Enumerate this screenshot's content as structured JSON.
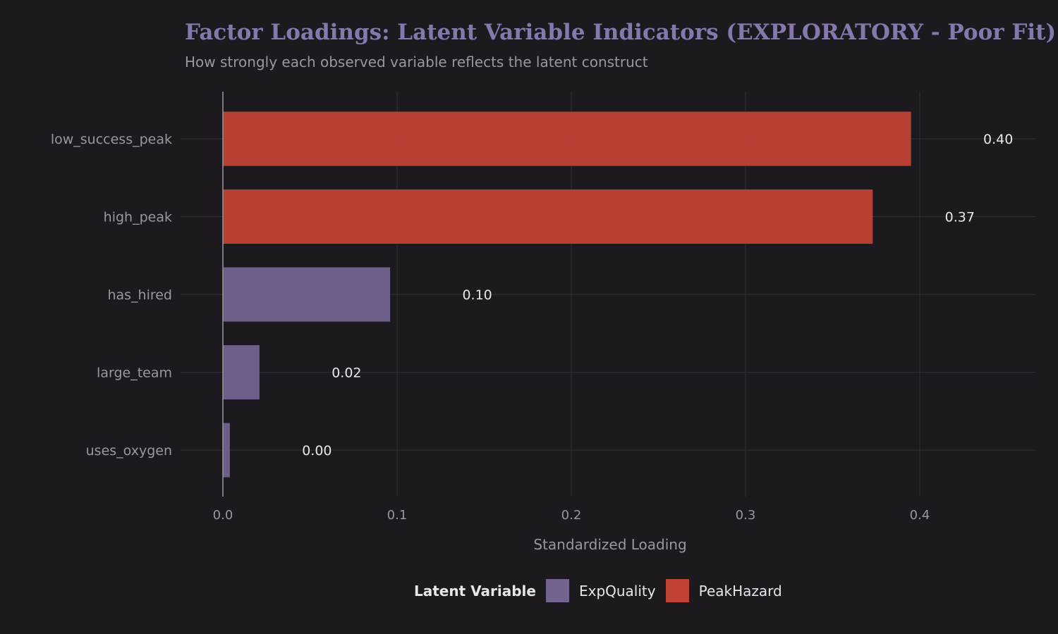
{
  "chart_data": {
    "type": "bar",
    "orientation": "horizontal",
    "title": "Factor Loadings: Latent Variable Indicators (EXPLORATORY - Poor Fit)",
    "subtitle": "How strongly each observed variable reflects the latent construct",
    "xlabel": "Standardized Loading",
    "ylabel": "",
    "xlim": [
      -0.022,
      0.47
    ],
    "xticks": [
      "0.0",
      "0.1",
      "0.2",
      "0.3",
      "0.4"
    ],
    "xtick_values": [
      0,
      0.1,
      0.2,
      0.3,
      0.4
    ],
    "grid": true,
    "categories": [
      "low_success_peak",
      "high_peak",
      "has_hired",
      "large_team",
      "uses_oxygen"
    ],
    "values": [
      0.395,
      0.373,
      0.096,
      0.021,
      0.004
    ],
    "data_labels": [
      "0.40",
      "0.37",
      "0.10",
      "0.02",
      "0.00"
    ],
    "groups": [
      "PeakHazard",
      "PeakHazard",
      "ExpQuality",
      "ExpQuality",
      "ExpQuality"
    ],
    "legend": {
      "title": "Latent Variable",
      "position": "bottom",
      "entries": [
        {
          "name": "ExpQuality",
          "color": "#72638f"
        },
        {
          "name": "PeakHazard",
          "color": "#c04235"
        }
      ]
    }
  }
}
